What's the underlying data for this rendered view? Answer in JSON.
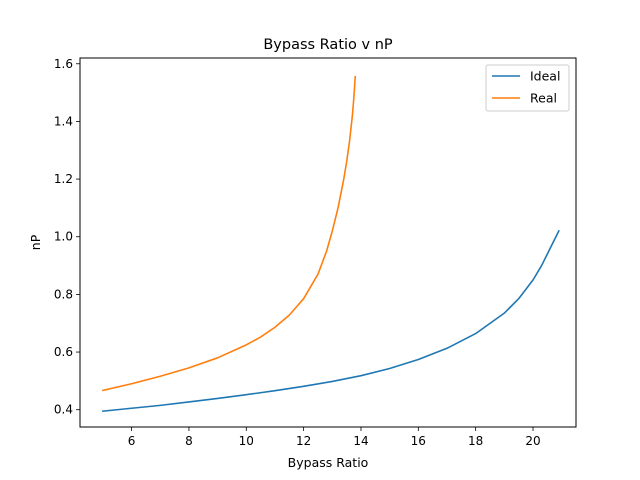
{
  "chart_data": {
    "type": "line",
    "title": "Bypass Ratio v nP",
    "xlabel": "Bypass Ratio",
    "ylabel": "nP",
    "xlim": [
      4.2,
      21.5
    ],
    "ylim": [
      0.34,
      1.62
    ],
    "xticks": [
      6,
      8,
      10,
      12,
      14,
      16,
      18,
      20
    ],
    "yticks": [
      0.4,
      0.6,
      0.8,
      1.0,
      1.2,
      1.4,
      1.6
    ],
    "xtick_labels": [
      "6",
      "8",
      "10",
      "12",
      "14",
      "16",
      "18",
      "20"
    ],
    "ytick_labels": [
      "0.4",
      "0.6",
      "0.8",
      "1.0",
      "1.2",
      "1.4",
      "1.6"
    ],
    "grid": false,
    "legend_position": "top-right",
    "series": [
      {
        "name": "Ideal",
        "color": "#1f77b4",
        "x": [
          5.0,
          6.0,
          7.0,
          8.0,
          9.0,
          10.0,
          11.0,
          12.0,
          13.0,
          14.0,
          15.0,
          16.0,
          17.0,
          18.0,
          19.0,
          19.5,
          20.0,
          20.3,
          20.6,
          20.9
        ],
        "y": [
          0.395,
          0.405,
          0.415,
          0.427,
          0.439,
          0.452,
          0.466,
          0.481,
          0.498,
          0.518,
          0.543,
          0.574,
          0.613,
          0.664,
          0.735,
          0.785,
          0.85,
          0.9,
          0.96,
          1.02
        ]
      },
      {
        "name": "Real",
        "color": "#ff7f0e",
        "x": [
          5.0,
          6.0,
          7.0,
          8.0,
          9.0,
          10.0,
          10.5,
          11.0,
          11.5,
          12.0,
          12.5,
          12.8,
          13.0,
          13.2,
          13.4,
          13.5,
          13.6,
          13.7,
          13.75,
          13.8
        ],
        "y": [
          0.467,
          0.49,
          0.516,
          0.545,
          0.58,
          0.625,
          0.652,
          0.686,
          0.728,
          0.785,
          0.87,
          0.95,
          1.02,
          1.1,
          1.2,
          1.26,
          1.33,
          1.42,
          1.48,
          1.555
        ]
      }
    ]
  }
}
